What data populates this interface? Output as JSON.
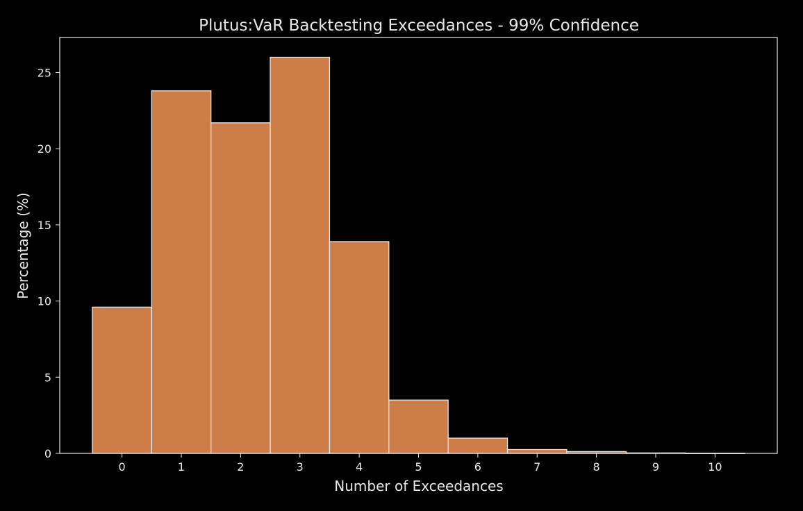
{
  "chart_data": {
    "type": "bar",
    "title": "Plutus:VaR Backtesting Exceedances - 99% Confidence",
    "xlabel": "Number of Exceedances",
    "ylabel": "Percentage (%)",
    "categories": [
      "0",
      "1",
      "2",
      "3",
      "4",
      "5",
      "6",
      "7",
      "8",
      "9",
      "10"
    ],
    "values": [
      9.6,
      23.8,
      21.7,
      26.0,
      13.9,
      3.5,
      1.0,
      0.25,
      0.12,
      0.03,
      0.01
    ],
    "x_ticks": [
      0,
      1,
      2,
      3,
      4,
      5,
      6,
      7,
      8,
      9,
      10
    ],
    "y_ticks": [
      0,
      5,
      10,
      15,
      20,
      25
    ],
    "xlim": [
      -1.05,
      11.05
    ],
    "ylim": [
      0,
      27.3
    ],
    "grid": false,
    "bar_color": "#cd7d47",
    "edge_color": "#e8e8e8",
    "background": "#000000",
    "text_color": "#e8e8e8"
  }
}
